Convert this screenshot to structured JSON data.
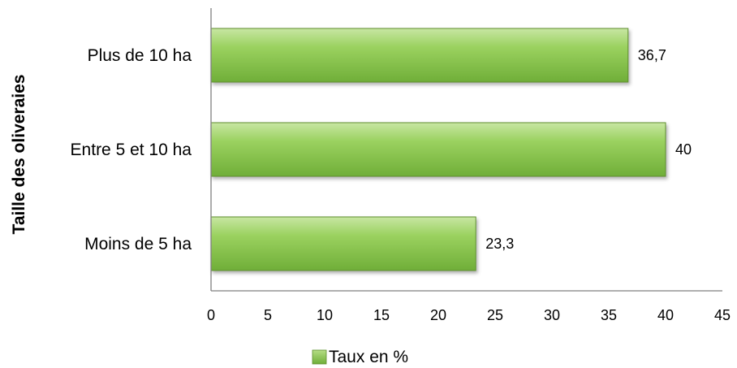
{
  "chart_data": {
    "type": "bar",
    "orientation": "horizontal",
    "categories": [
      "Plus de 10 ha",
      "Entre 5 et 10 ha",
      "Moins de 5 ha"
    ],
    "series": [
      {
        "name": "Taux en %",
        "values": [
          36.7,
          40,
          23.3
        ],
        "color": "#8dc94e"
      }
    ],
    "data_labels": [
      "36,7",
      "40",
      "23,3"
    ],
    "ylabel": "Taille des oliveraies",
    "xlabel": "",
    "xlim": [
      0,
      45
    ],
    "x_ticks": [
      0,
      5,
      10,
      15,
      20,
      25,
      30,
      35,
      40,
      45
    ],
    "grid": false,
    "legend_position": "bottom"
  }
}
